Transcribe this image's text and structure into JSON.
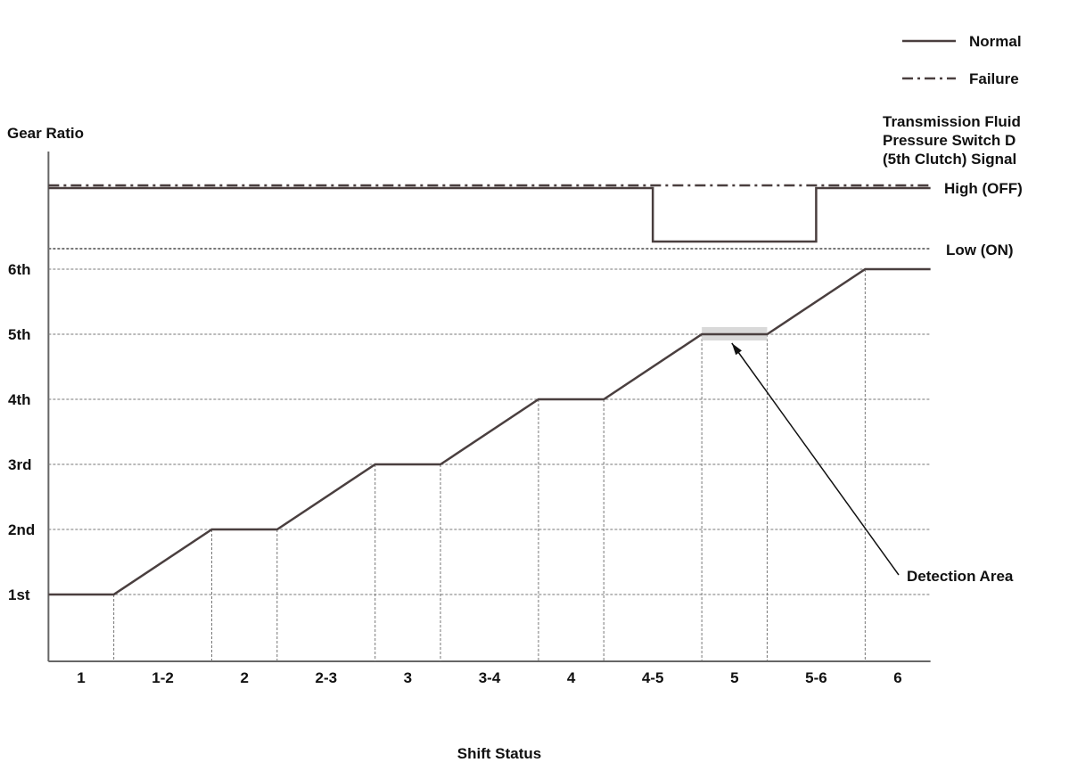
{
  "chart_data": {
    "type": "line",
    "xlabel": "Shift Status",
    "ylabel": "Gear Ratio",
    "right_axis_title": [
      "Transmission Fluid",
      "Pressure Switch D",
      "(5th Clutch) Signal"
    ],
    "right_axis_levels": [
      "High (OFF)",
      "Low (ON)"
    ],
    "categories": [
      "1",
      "1-2",
      "2",
      "2-3",
      "3",
      "3-4",
      "4",
      "4-5",
      "5",
      "5-6",
      "6"
    ],
    "gear_labels": [
      "1st",
      "2nd",
      "3rd",
      "4th",
      "5th",
      "6th"
    ],
    "legend": [
      {
        "name": "Normal",
        "style": "solid"
      },
      {
        "name": "Failure",
        "style": "dash-dot"
      }
    ],
    "series": [
      {
        "name": "Gear ratio",
        "points": [
          [
            -0.4,
            1
          ],
          [
            0.4,
            1
          ],
          [
            1.6,
            2
          ],
          [
            2.4,
            2
          ],
          [
            3.6,
            3
          ],
          [
            4.4,
            3
          ],
          [
            5.6,
            4
          ],
          [
            6.4,
            4
          ],
          [
            7.6,
            5
          ],
          [
            8.4,
            5
          ],
          [
            9.6,
            6
          ],
          [
            10.4,
            6
          ]
        ]
      },
      {
        "name": "Normal",
        "points": [
          [
            -0.4,
            "high"
          ],
          [
            7.0,
            "high"
          ],
          [
            7.0,
            "low"
          ],
          [
            9.0,
            "low"
          ],
          [
            9.0,
            "high"
          ],
          [
            10.4,
            "high"
          ]
        ]
      },
      {
        "name": "Failure",
        "points": [
          [
            -0.4,
            "high"
          ],
          [
            10.4,
            "high"
          ]
        ]
      }
    ],
    "annotation": {
      "text": "Detection Area",
      "target_category": "5",
      "target_gear": 5
    }
  },
  "colors": {
    "line": "#4a3f3f",
    "grid": "#777777",
    "highlight": "#d9d9d9"
  }
}
